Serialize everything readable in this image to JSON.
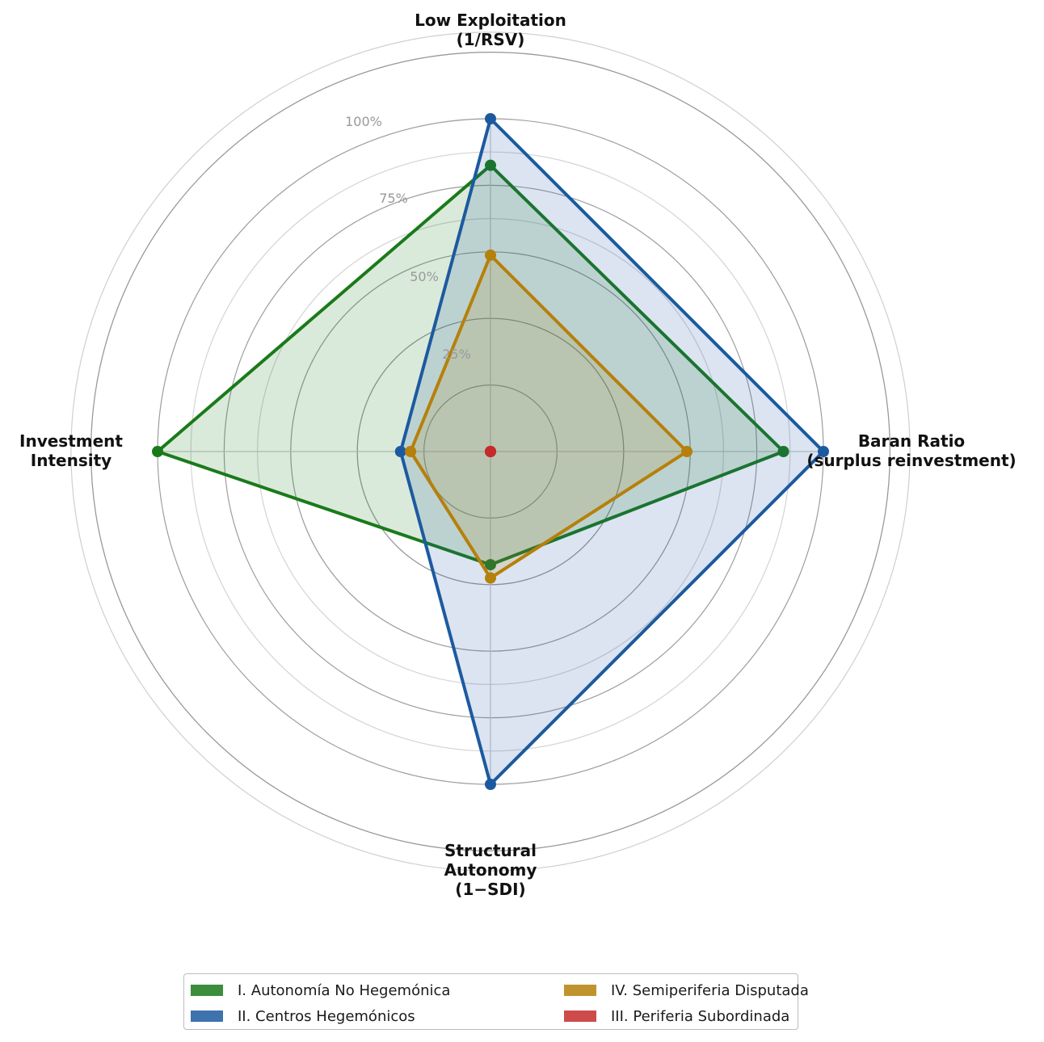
{
  "chart_data": {
    "type": "radar",
    "axes": [
      "Low Exploitation\n(1/RSV)",
      "Baran Ratio\n(surplus reinvestment)",
      "Structural\nAutonomy\n(1−SDI)",
      "Investment\nIntensity"
    ],
    "radial_ticks": [
      25,
      50,
      75,
      100
    ],
    "radial_tick_labels": [
      "25%",
      "50%",
      "75%",
      "100%"
    ],
    "rlim": [
      0,
      100
    ],
    "grid": true,
    "legend_position": "bottom-center",
    "series": [
      {
        "name": "I. Autonomía No Hegemónica",
        "color": "#1a7a1a",
        "values": [
          86,
          88,
          34,
          100
        ]
      },
      {
        "name": "II. Centros Hegemónicos",
        "color": "#1c5aa0",
        "values": [
          100,
          100,
          100,
          27
        ]
      },
      {
        "name": "IV. Semiperiferia Disputada",
        "color": "#b5800b",
        "values": [
          59,
          59,
          38,
          24
        ]
      },
      {
        "name": "III. Periferia Subordinada",
        "color": "#c42b2b",
        "values": [
          0,
          0,
          0,
          0
        ]
      }
    ]
  }
}
